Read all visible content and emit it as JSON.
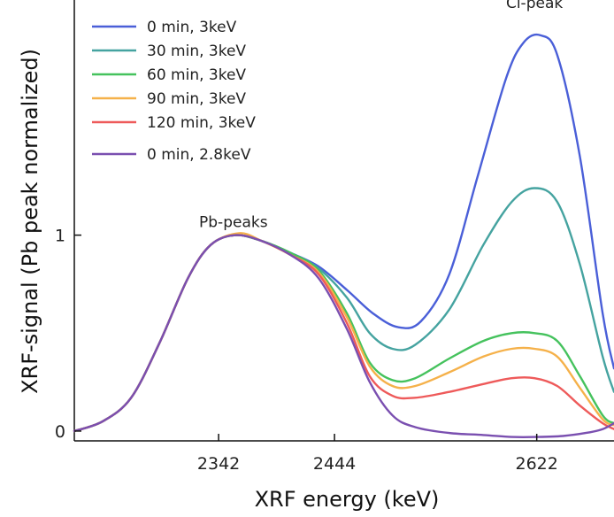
{
  "chart_data": {
    "type": "line",
    "title": "",
    "xlabel": "XRF energy (keV)",
    "ylabel": "XRF-signal (Pb peak normalized)",
    "x_ticks": [
      {
        "value": 2342,
        "label": "2342"
      },
      {
        "value": 2444,
        "label": "2444"
      },
      {
        "value": 2622,
        "label": "2622"
      }
    ],
    "y_ticks": [
      {
        "value": 0,
        "label": "0"
      },
      {
        "value": 1,
        "label": "1"
      }
    ],
    "xlim": [
      2215,
      2690
    ],
    "ylim": [
      -0.05,
      2.2
    ],
    "grid": false,
    "legend_position": "top-left",
    "annotations": [
      {
        "text": "Pb-peaks",
        "x": 2355,
        "y": 1.04
      },
      {
        "text": "Cl-peak",
        "x": 2620,
        "y": 2.16
      }
    ],
    "series": [
      {
        "name": "0 min, 3keV",
        "color": "#4a5fd8",
        "points": [
          [
            2215,
            0
          ],
          [
            2240,
            0.05
          ],
          [
            2265,
            0.17
          ],
          [
            2290,
            0.45
          ],
          [
            2315,
            0.78
          ],
          [
            2335,
            0.95
          ],
          [
            2357,
            1.0
          ],
          [
            2380,
            0.97
          ],
          [
            2405,
            0.91
          ],
          [
            2430,
            0.84
          ],
          [
            2455,
            0.72
          ],
          [
            2478,
            0.6
          ],
          [
            2500,
            0.53
          ],
          [
            2520,
            0.56
          ],
          [
            2545,
            0.8
          ],
          [
            2570,
            1.3
          ],
          [
            2595,
            1.8
          ],
          [
            2610,
            1.98
          ],
          [
            2625,
            2.02
          ],
          [
            2640,
            1.92
          ],
          [
            2660,
            1.4
          ],
          [
            2680,
            0.6
          ],
          [
            2690,
            0.32
          ]
        ]
      },
      {
        "name": "30 min, 3keV",
        "color": "#45a3a0",
        "points": [
          [
            2215,
            0
          ],
          [
            2240,
            0.05
          ],
          [
            2265,
            0.17
          ],
          [
            2290,
            0.45
          ],
          [
            2315,
            0.78
          ],
          [
            2335,
            0.95
          ],
          [
            2357,
            1.0
          ],
          [
            2380,
            0.97
          ],
          [
            2405,
            0.91
          ],
          [
            2430,
            0.83
          ],
          [
            2455,
            0.68
          ],
          [
            2475,
            0.5
          ],
          [
            2495,
            0.42
          ],
          [
            2515,
            0.44
          ],
          [
            2545,
            0.62
          ],
          [
            2575,
            0.95
          ],
          [
            2600,
            1.17
          ],
          [
            2620,
            1.24
          ],
          [
            2640,
            1.17
          ],
          [
            2660,
            0.85
          ],
          [
            2680,
            0.38
          ],
          [
            2690,
            0.2
          ]
        ]
      },
      {
        "name": "60 min, 3keV",
        "color": "#45c25d",
        "points": [
          [
            2215,
            0
          ],
          [
            2240,
            0.05
          ],
          [
            2265,
            0.17
          ],
          [
            2290,
            0.45
          ],
          [
            2315,
            0.78
          ],
          [
            2335,
            0.95
          ],
          [
            2357,
            1.0
          ],
          [
            2380,
            0.97
          ],
          [
            2405,
            0.91
          ],
          [
            2430,
            0.82
          ],
          [
            2455,
            0.6
          ],
          [
            2475,
            0.35
          ],
          [
            2495,
            0.26
          ],
          [
            2515,
            0.27
          ],
          [
            2545,
            0.37
          ],
          [
            2575,
            0.46
          ],
          [
            2600,
            0.5
          ],
          [
            2620,
            0.5
          ],
          [
            2640,
            0.46
          ],
          [
            2660,
            0.28
          ],
          [
            2680,
            0.08
          ],
          [
            2690,
            0.04
          ]
        ]
      },
      {
        "name": "90 min, 3keV",
        "color": "#f5b14a",
        "points": [
          [
            2215,
            0
          ],
          [
            2240,
            0.05
          ],
          [
            2265,
            0.17
          ],
          [
            2290,
            0.45
          ],
          [
            2315,
            0.78
          ],
          [
            2335,
            0.95
          ],
          [
            2360,
            1.01
          ],
          [
            2380,
            0.97
          ],
          [
            2405,
            0.9
          ],
          [
            2430,
            0.81
          ],
          [
            2455,
            0.58
          ],
          [
            2475,
            0.33
          ],
          [
            2495,
            0.23
          ],
          [
            2515,
            0.23
          ],
          [
            2545,
            0.3
          ],
          [
            2575,
            0.38
          ],
          [
            2600,
            0.42
          ],
          [
            2620,
            0.42
          ],
          [
            2640,
            0.38
          ],
          [
            2660,
            0.22
          ],
          [
            2680,
            0.06
          ],
          [
            2690,
            0.03
          ]
        ]
      },
      {
        "name": "120 min, 3keV",
        "color": "#ee5a5a",
        "points": [
          [
            2215,
            0
          ],
          [
            2240,
            0.05
          ],
          [
            2265,
            0.17
          ],
          [
            2290,
            0.45
          ],
          [
            2315,
            0.78
          ],
          [
            2335,
            0.95
          ],
          [
            2357,
            1.0
          ],
          [
            2380,
            0.97
          ],
          [
            2405,
            0.9
          ],
          [
            2430,
            0.8
          ],
          [
            2455,
            0.55
          ],
          [
            2475,
            0.28
          ],
          [
            2495,
            0.18
          ],
          [
            2515,
            0.17
          ],
          [
            2545,
            0.2
          ],
          [
            2575,
            0.24
          ],
          [
            2600,
            0.27
          ],
          [
            2620,
            0.27
          ],
          [
            2640,
            0.23
          ],
          [
            2660,
            0.13
          ],
          [
            2680,
            0.04
          ],
          [
            2690,
            0.01
          ]
        ]
      },
      {
        "name": "0 min, 2.8keV",
        "color": "#7a4fb0",
        "points": [
          [
            2215,
            0
          ],
          [
            2240,
            0.05
          ],
          [
            2265,
            0.17
          ],
          [
            2290,
            0.45
          ],
          [
            2315,
            0.78
          ],
          [
            2335,
            0.95
          ],
          [
            2357,
            1.0
          ],
          [
            2380,
            0.97
          ],
          [
            2405,
            0.9
          ],
          [
            2430,
            0.78
          ],
          [
            2455,
            0.52
          ],
          [
            2475,
            0.25
          ],
          [
            2495,
            0.08
          ],
          [
            2515,
            0.02
          ],
          [
            2545,
            -0.01
          ],
          [
            2575,
            -0.02
          ],
          [
            2600,
            -0.03
          ],
          [
            2622,
            -0.03
          ],
          [
            2645,
            -0.025
          ],
          [
            2665,
            -0.01
          ],
          [
            2680,
            0.01
          ],
          [
            2690,
            0.04
          ]
        ]
      }
    ]
  }
}
